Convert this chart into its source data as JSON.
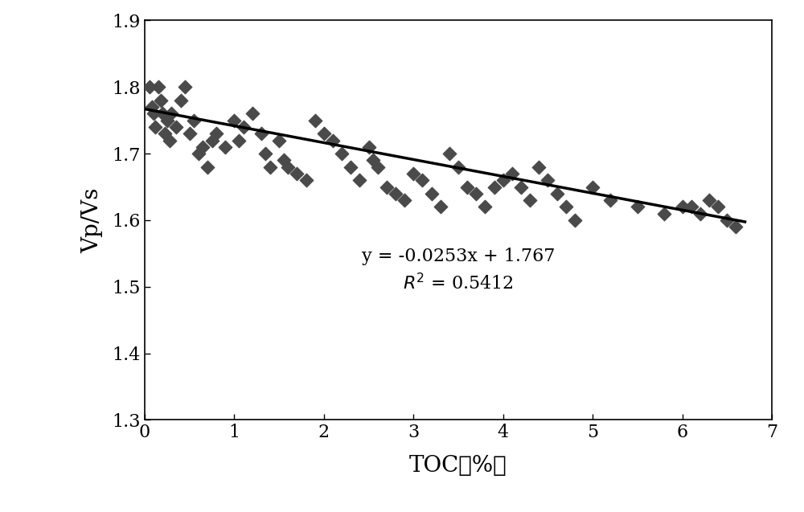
{
  "scatter_x": [
    0.05,
    0.08,
    0.1,
    0.12,
    0.15,
    0.18,
    0.2,
    0.22,
    0.25,
    0.28,
    0.3,
    0.35,
    0.4,
    0.45,
    0.5,
    0.55,
    0.6,
    0.65,
    0.7,
    0.75,
    0.8,
    0.9,
    1.0,
    1.05,
    1.1,
    1.2,
    1.3,
    1.35,
    1.4,
    1.5,
    1.55,
    1.6,
    1.7,
    1.8,
    1.9,
    2.0,
    2.1,
    2.2,
    2.3,
    2.4,
    2.5,
    2.55,
    2.6,
    2.7,
    2.8,
    2.9,
    3.0,
    3.1,
    3.2,
    3.3,
    3.4,
    3.5,
    3.6,
    3.7,
    3.8,
    3.9,
    4.0,
    4.1,
    4.2,
    4.3,
    4.4,
    4.5,
    4.6,
    4.7,
    4.8,
    5.0,
    5.2,
    5.5,
    5.8,
    6.0,
    6.1,
    6.2,
    6.3,
    6.4,
    6.5,
    6.6
  ],
  "scatter_y": [
    1.8,
    1.77,
    1.76,
    1.74,
    1.8,
    1.78,
    1.76,
    1.73,
    1.75,
    1.72,
    1.76,
    1.74,
    1.78,
    1.8,
    1.73,
    1.75,
    1.7,
    1.71,
    1.68,
    1.72,
    1.73,
    1.71,
    1.75,
    1.72,
    1.74,
    1.76,
    1.73,
    1.7,
    1.68,
    1.72,
    1.69,
    1.68,
    1.67,
    1.66,
    1.75,
    1.73,
    1.72,
    1.7,
    1.68,
    1.66,
    1.71,
    1.69,
    1.68,
    1.65,
    1.64,
    1.63,
    1.67,
    1.66,
    1.64,
    1.62,
    1.7,
    1.68,
    1.65,
    1.64,
    1.62,
    1.65,
    1.66,
    1.67,
    1.65,
    1.63,
    1.68,
    1.66,
    1.64,
    1.62,
    1.6,
    1.65,
    1.63,
    1.62,
    1.61,
    1.62,
    1.62,
    1.61,
    1.63,
    1.62,
    1.6,
    1.59
  ],
  "slope": -0.0253,
  "intercept": 1.767,
  "xlim": [
    0,
    7
  ],
  "ylim": [
    1.3,
    1.9
  ],
  "xticks": [
    0,
    1,
    2,
    3,
    4,
    5,
    6,
    7
  ],
  "yticks": [
    1.3,
    1.4,
    1.5,
    1.6,
    1.7,
    1.8,
    1.9
  ],
  "xlabel": "TOC（%）",
  "ylabel": "Vp/Vs",
  "marker_color": "#4a4a4a",
  "line_color": "#000000",
  "bg_color": "#ffffff",
  "outer_bg": "#ffffff",
  "marker_size": 70,
  "line_width": 2.5,
  "label_fontsize": 20,
  "tick_fontsize": 16,
  "annot_fontsize": 16,
  "eq_x": 3.5,
  "eq_y": 1.545,
  "r2_y": 1.505
}
